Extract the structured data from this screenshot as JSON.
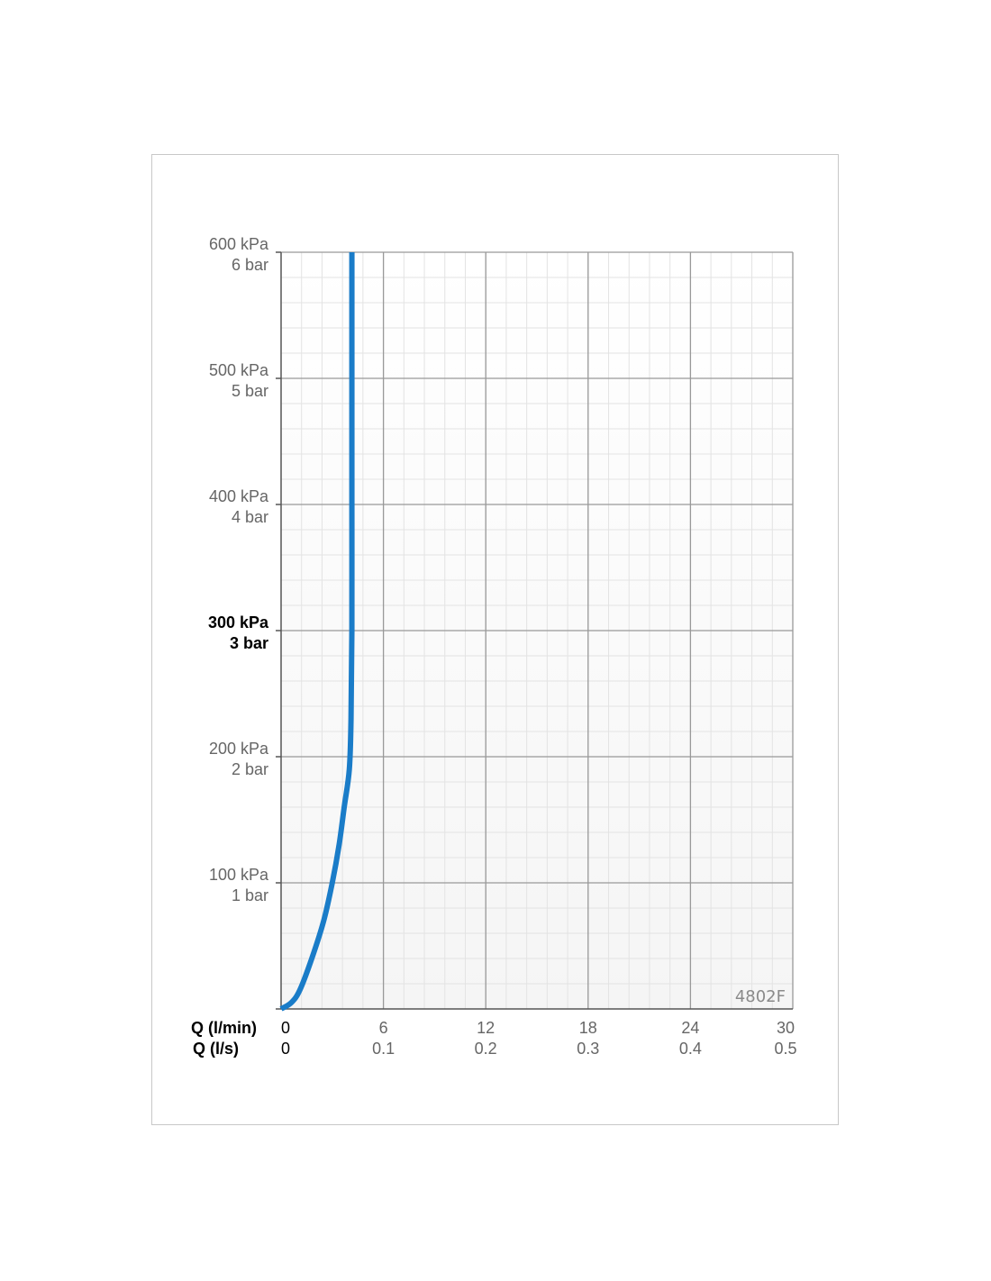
{
  "chart_data": {
    "type": "line",
    "title": "",
    "model_code": "4802F",
    "xlabel_primary": "Q (l/min)",
    "xlabel_secondary": "Q (l/s)",
    "x_range": [
      0,
      30
    ],
    "y_range": [
      0,
      600
    ],
    "x_ticks": [
      {
        "value": 0,
        "primary": "0",
        "secondary": "0"
      },
      {
        "value": 6,
        "primary": "6",
        "secondary": "0.1"
      },
      {
        "value": 12,
        "primary": "12",
        "secondary": "0.2"
      },
      {
        "value": 18,
        "primary": "18",
        "secondary": "0.3"
      },
      {
        "value": 24,
        "primary": "24",
        "secondary": "0.4"
      },
      {
        "value": 30,
        "primary": "30",
        "secondary": "0.5"
      }
    ],
    "y_ticks": [
      {
        "value": 100,
        "kpa": "100 kPa",
        "bar": "1 bar",
        "bold": false
      },
      {
        "value": 200,
        "kpa": "200 kPa",
        "bar": "2 bar",
        "bold": false
      },
      {
        "value": 300,
        "kpa": "300 kPa",
        "bar": "3 bar",
        "bold": true
      },
      {
        "value": 400,
        "kpa": "400 kPa",
        "bar": "4 bar",
        "bold": false
      },
      {
        "value": 500,
        "kpa": "500 kPa",
        "bar": "5 bar",
        "bold": false
      },
      {
        "value": 600,
        "kpa": "600 kPa",
        "bar": "6 bar",
        "bold": false
      }
    ],
    "grid": true,
    "minor_grid_step_x": 1.2,
    "minor_grid_step_y": 20,
    "series": [
      {
        "color": "#1a7cc8",
        "points": [
          [
            0,
            0
          ],
          [
            0.6,
            5
          ],
          [
            1.1,
            15
          ],
          [
            1.8,
            40
          ],
          [
            2.5,
            70
          ],
          [
            3.0,
            100
          ],
          [
            3.4,
            130
          ],
          [
            3.7,
            160
          ],
          [
            4.0,
            190
          ],
          [
            4.1,
            230
          ],
          [
            4.15,
            300
          ],
          [
            4.15,
            400
          ],
          [
            4.15,
            500
          ],
          [
            4.15,
            600
          ]
        ]
      }
    ]
  }
}
